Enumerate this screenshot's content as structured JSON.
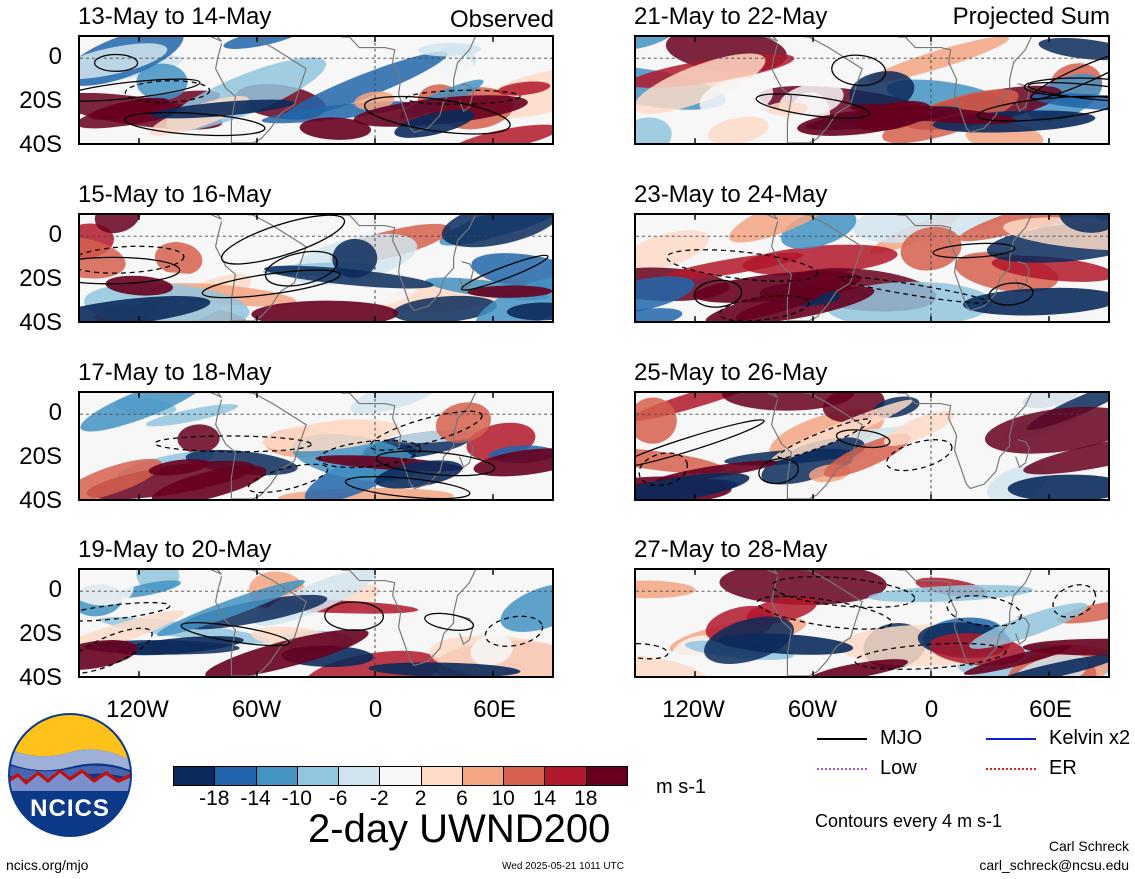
{
  "columns": {
    "left_label": "Observed",
    "right_label": "Projected Sum"
  },
  "panels": {
    "left": [
      {
        "title": "13-May to 14-May"
      },
      {
        "title": "15-May to 16-May"
      },
      {
        "title": "17-May to 18-May"
      },
      {
        "title": "19-May to 20-May"
      }
    ],
    "right": [
      {
        "title": "21-May to 22-May"
      },
      {
        "title": "23-May to 24-May"
      },
      {
        "title": "25-May to 26-May"
      },
      {
        "title": "27-May to 28-May"
      }
    ]
  },
  "axes": {
    "lat_labels": [
      "0",
      "20S",
      "40S"
    ],
    "lon_labels": [
      "120W",
      "60W",
      "0",
      "60E"
    ]
  },
  "colorbar": {
    "ticks": [
      "-18",
      "-14",
      "-10",
      "-6",
      "-2",
      "2",
      "6",
      "10",
      "14",
      "18"
    ],
    "colors": [
      "#0b2a5b",
      "#2166ac",
      "#4393c3",
      "#92c5de",
      "#d1e5f0",
      "#f7f7f7",
      "#fddbc7",
      "#f4a582",
      "#d6604d",
      "#b2182b",
      "#67001f"
    ],
    "units": "m s-1"
  },
  "title": "2-day UWND200",
  "legend": {
    "items": [
      {
        "label": "MJO",
        "color": "#000000"
      },
      {
        "label": "Kelvin x2",
        "color": "#1020d0"
      },
      {
        "label": "Low",
        "color": "#b050e0"
      },
      {
        "label": "ER",
        "color": "#e02020"
      }
    ],
    "contour_note": "Contours every 4 m s-1"
  },
  "logo": {
    "text": "NCICS"
  },
  "footer": {
    "url": "ncics.org/mjo",
    "timestamp": "Wed 2025-05-21 1011 UTC",
    "author": "Carl Schreck",
    "email": "carl_schreck@ncsu.edu"
  }
}
